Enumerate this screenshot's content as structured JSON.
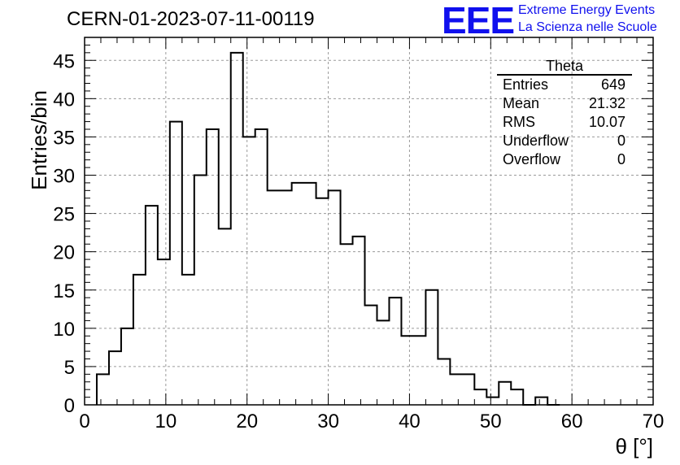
{
  "header": {
    "title": "CERN-01-2023-07-11-00119",
    "logo_text": "EEE",
    "logo_line1": "Extreme Energy Events",
    "logo_line2": "La Scienza nelle Scuole"
  },
  "stats": {
    "title": "Theta",
    "rows": [
      {
        "label": "Entries",
        "value": "649"
      },
      {
        "label": "Mean",
        "value": "21.32"
      },
      {
        "label": "RMS",
        "value": "10.07"
      },
      {
        "label": "Underflow",
        "value": "0"
      },
      {
        "label": "Overflow",
        "value": "0"
      }
    ]
  },
  "chart_data": {
    "type": "histogram",
    "title": "CERN-01-2023-07-11-00119",
    "xlabel": "θ [°]",
    "ylabel": "Entries/bin",
    "xlim": [
      0,
      70
    ],
    "ylim": [
      0,
      48
    ],
    "xticks": [
      0,
      10,
      20,
      30,
      40,
      50,
      60,
      70
    ],
    "yticks": [
      0,
      5,
      10,
      15,
      20,
      25,
      30,
      35,
      40,
      45
    ],
    "grid": true,
    "legend": "top-right",
    "bin_width": 1.5,
    "bin_start": 1.5,
    "values": [
      4,
      7,
      10,
      17,
      26,
      19,
      37,
      17,
      30,
      36,
      23,
      46,
      35,
      36,
      28,
      28,
      29,
      29,
      27,
      28,
      21,
      22,
      13,
      11,
      14,
      9,
      9,
      15,
      6,
      4,
      4,
      2,
      1,
      3,
      2,
      0,
      1,
      0
    ]
  }
}
